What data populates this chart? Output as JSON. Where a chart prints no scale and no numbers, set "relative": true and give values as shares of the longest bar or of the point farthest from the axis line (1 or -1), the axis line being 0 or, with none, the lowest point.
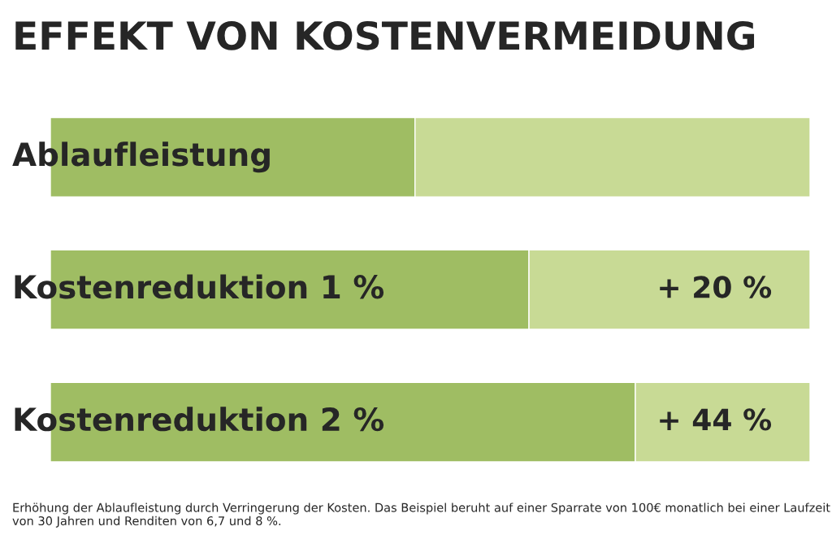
{
  "chart_data": {
    "type": "bar",
    "title": "EFFEKT VON KOSTENVERMEIDUNG",
    "orientation": "horizontal",
    "stacked": true,
    "relative": true,
    "categories": [
      "Ablaufleistung",
      "Kostenreduktion 1 %",
      "Kostenreduktion 2 %"
    ],
    "series": [
      {
        "color": "#9fbd63",
        "values": [
          0.48,
          0.63,
          0.77
        ]
      },
      {
        "color": "#c8da95",
        "values": [
          0.52,
          0.37,
          0.23
        ]
      }
    ],
    "annotations": [
      "+ 20 %",
      "+ 44 %",
      "Erhöhung der Ablaufleistung durch Verringerung der Kosten. Das Beispiel beruht auf einer Sparrate von 100€ monatlich bei einer Laufzeit von 30 Jahren und Renditen von 6,7 und 8 %."
    ]
  }
}
